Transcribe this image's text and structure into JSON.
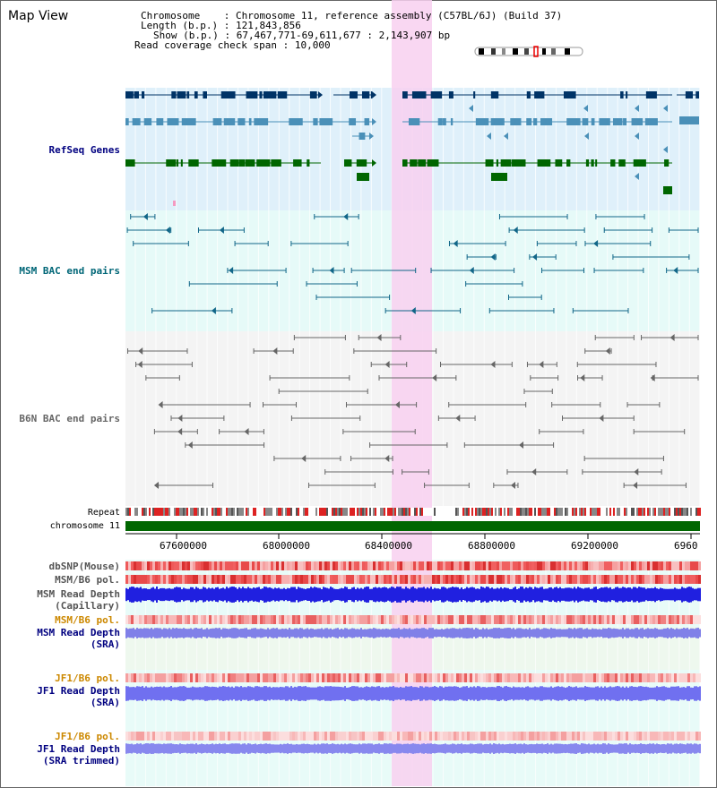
{
  "page_title": "Map View",
  "info": {
    "chromosome_label": "Chromosome",
    "chromosome_value": "Chromosome 11, reference assembly (C57BL/6J) (Build 37)",
    "length_label": "Length (b.p.)",
    "length_value": "121,843,856",
    "show_label": "Show (b.p.)",
    "show_value": "67,467,771-69,611,677 : 2,143,907 bp",
    "coverage_label": "Read coverage check span",
    "coverage_value": "10,000"
  },
  "tracks": {
    "refseq": "RefSeq Genes",
    "msm_bac": "MSM BAC end pairs",
    "b6n_bac": "B6N BAC end pairs",
    "repeat": "Repeat",
    "chromosome": "chromosome 11",
    "dbsnp": "dbSNP(Mouse)",
    "msm_b6_pol_1": "MSM/B6 pol.",
    "msm_read_depth_cap_1": "MSM Read Depth",
    "msm_read_depth_cap_2": "(Capillary)",
    "msm_b6_pol_2": "MSM/B6 pol.",
    "msm_read_depth_sra_1": "MSM Read Depth",
    "msm_read_depth_sra_2": "(SRA)",
    "jf1_b6_pol_1": "JF1/B6 pol.",
    "jf1_read_depth_sra_1": "JF1 Read Depth",
    "jf1_read_depth_sra_2": "(SRA)",
    "jf1_b6_pol_2": "JF1/B6 pol.",
    "jf1_read_depth_trim_1": "JF1 Read Depth",
    "jf1_read_depth_trim_2": "(SRA trimmed)"
  },
  "axis": {
    "ticks": [
      "67600000",
      "68000000",
      "68400000",
      "68800000",
      "69200000",
      "6960"
    ]
  },
  "colors": {
    "refseq_dark": "#003366",
    "refseq_mid": "#4a90b8",
    "refseq_green": "#006600",
    "msm_bac": "#116688",
    "b6n_bac": "#666666",
    "highlight": "#f8d0f0",
    "label_navy": "#000080",
    "label_teal": "#006677",
    "label_gray": "#666666",
    "label_orange": "#cc8800"
  }
}
